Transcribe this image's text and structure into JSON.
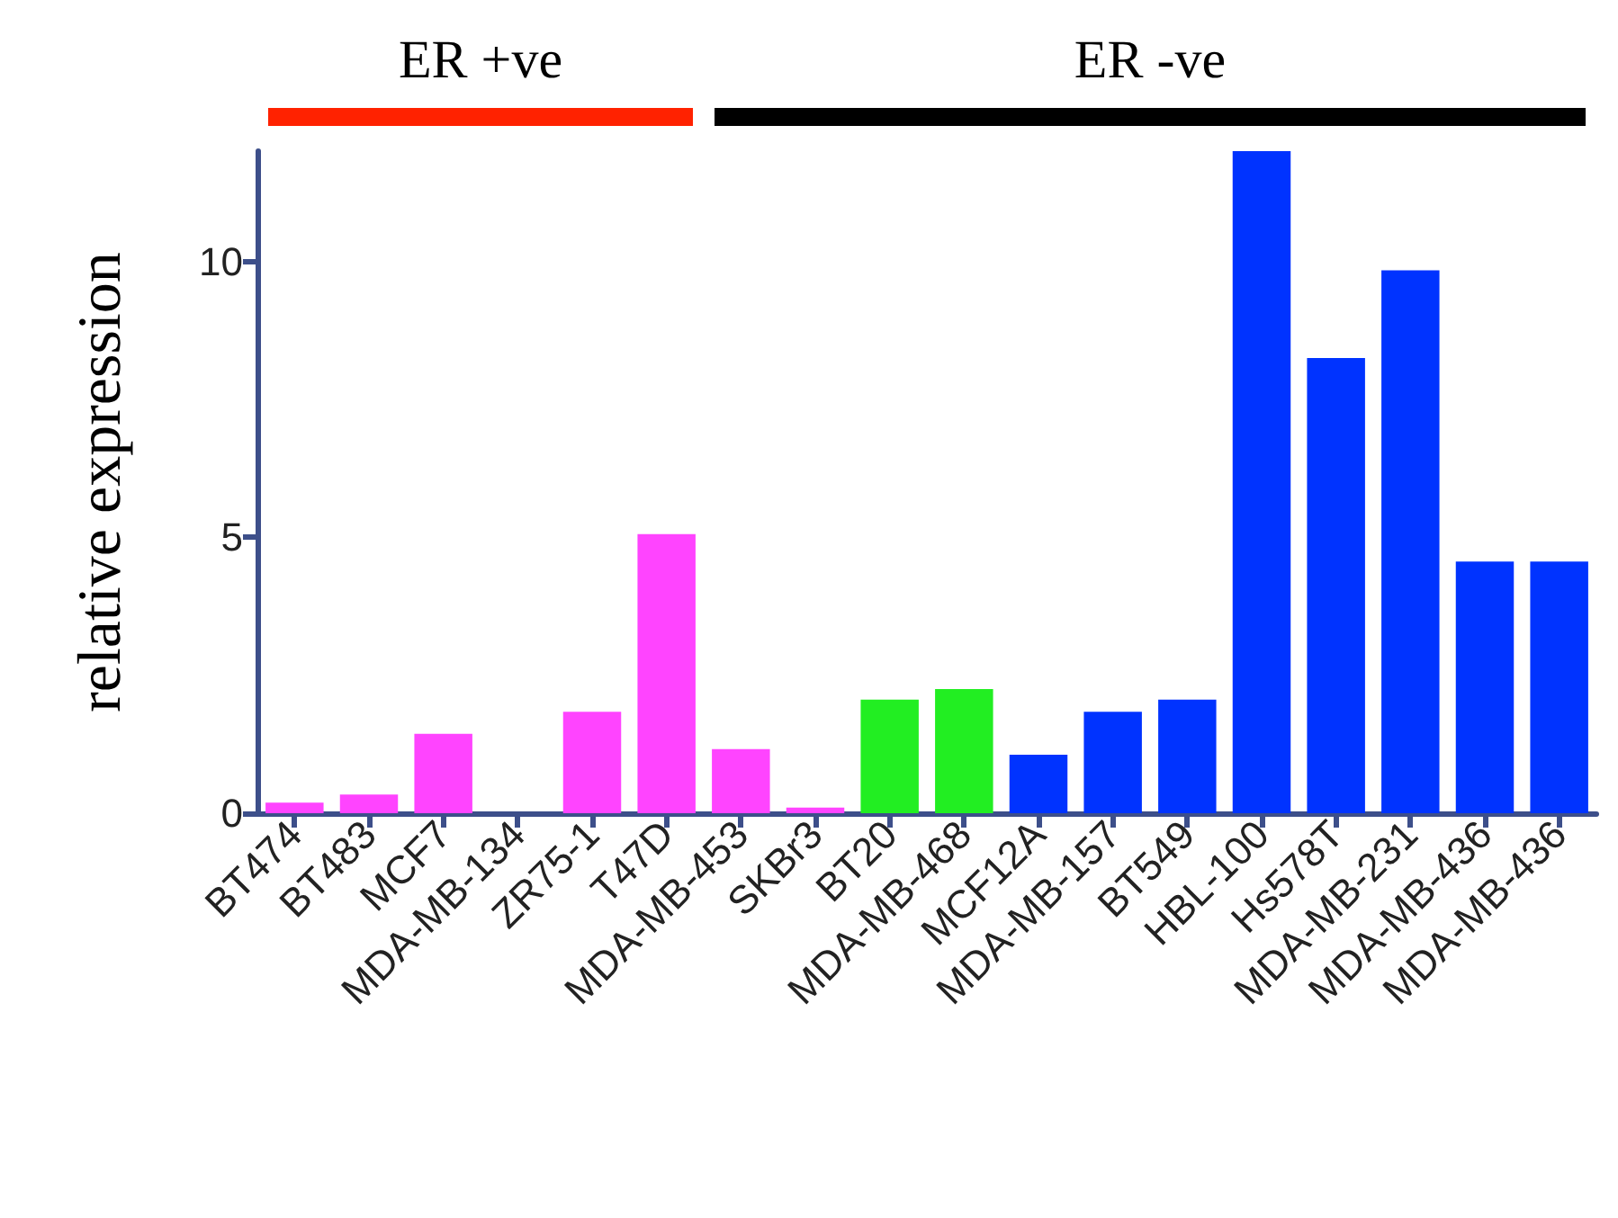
{
  "chart_data": {
    "type": "bar",
    "ylabel": "relative expression",
    "categories": [
      "BT474",
      "BT483",
      "MCF7",
      "MDA-MB-134",
      "ZR75-1",
      "T47D",
      "MDA-MB-453",
      "SKBr3",
      "BT20",
      "MDA-MB-468",
      "MCF12A",
      "MDA-MB-157",
      "BT549",
      "HBL-100",
      "Hs578T",
      "MDA-MB-231",
      "MDA-MB-436",
      "MDA-MB-436"
    ],
    "values": [
      0.19,
      0.34,
      1.44,
      0,
      1.84,
      5.06,
      1.16,
      0.1,
      2.06,
      2.25,
      1.06,
      1.84,
      2.06,
      12,
      8.25,
      9.84,
      4.56,
      4.56
    ],
    "colors": [
      "#ff44ff",
      "#ff44ff",
      "#ff44ff",
      "#ff44ff",
      "#ff44ff",
      "#ff44ff",
      "#ff44ff",
      "#ff44ff",
      "#22ee22",
      "#22ee22",
      "#0033ff",
      "#0033ff",
      "#0033ff",
      "#0033ff",
      "#0033ff",
      "#0033ff",
      "#0033ff",
      "#0033ff"
    ],
    "ylim": [
      0,
      12
    ],
    "yticks": [
      0,
      5,
      10
    ],
    "grid": false,
    "annotations": [
      "ER +ve",
      "ER -ve"
    ]
  }
}
